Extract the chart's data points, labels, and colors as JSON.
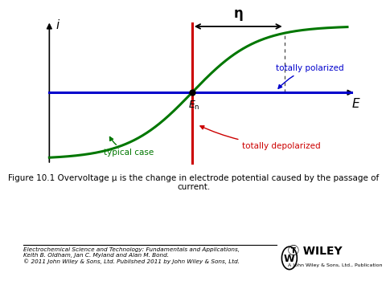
{
  "figure_caption_bold": "Figure 10.1",
  "figure_caption_normal": " Overvoltage μ is the change in electrode potential caused by the passage of\ncurrent.",
  "footer_text": "Electrochemical Science and Technology: Fundamentals and Applications,\nKeith B. Oldham, Jan C. Myland and Alan M. Bond.\n© 2011 John Wiley & Sons, Ltd. Published 2011 by John Wiley & Sons, Ltd.",
  "xlabel": "E",
  "ylabel": "i",
  "curve_color": "#007700",
  "blue_line_color": "#0000CC",
  "red_line_color": "#CC0000",
  "text_green": "#007700",
  "text_red": "#CC0000",
  "text_blue": "#0000CC",
  "En_x": 0.0,
  "E_applied_x": 2.2,
  "xlim": [
    -3.5,
    4.0
  ],
  "ylim": [
    -2.8,
    2.8
  ]
}
